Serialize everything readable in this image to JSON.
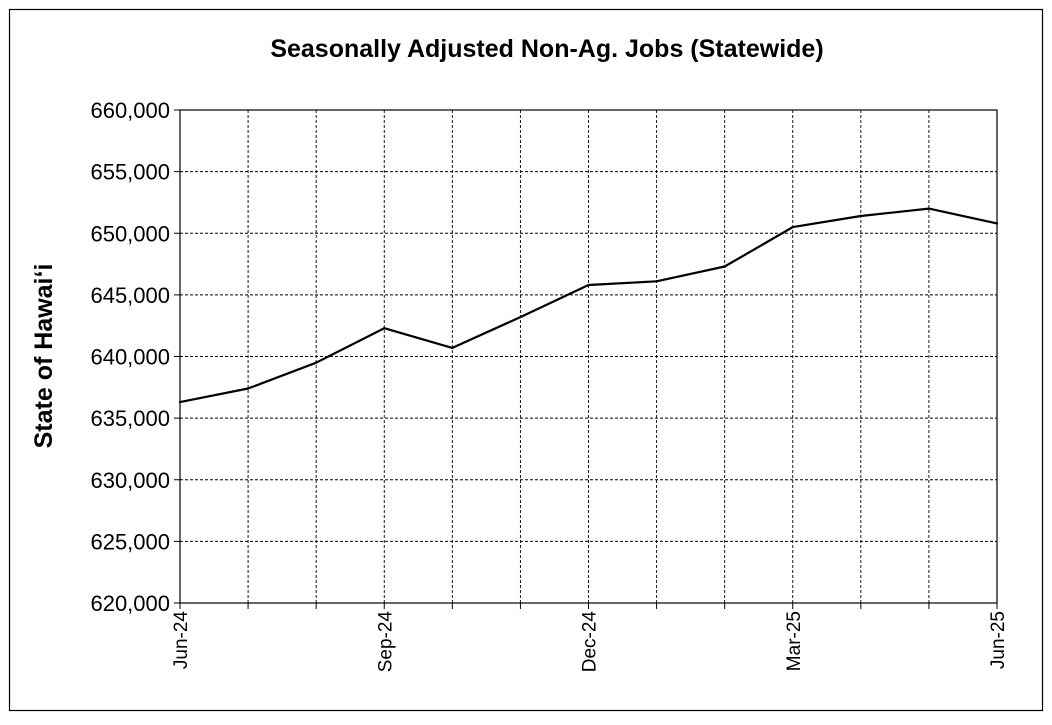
{
  "chart_data": {
    "type": "line",
    "title": "Seasonally Adjusted Non-Ag. Jobs (Statewide)",
    "ylabel": "State of Hawai‘i",
    "xlabel": "",
    "ylim": [
      620000,
      660000
    ],
    "y_ticks": [
      620000,
      625000,
      630000,
      635000,
      640000,
      645000,
      650000,
      655000,
      660000
    ],
    "y_tick_labels": [
      "620,000",
      "625,000",
      "630,000",
      "635,000",
      "640,000",
      "645,000",
      "650,000",
      "655,000",
      "660,000"
    ],
    "x": [
      "Jun-24",
      "Jul-24",
      "Aug-24",
      "Sep-24",
      "Oct-24",
      "Nov-24",
      "Dec-24",
      "Jan-25",
      "Feb-25",
      "Mar-25",
      "Apr-25",
      "May-25",
      "Jun-25"
    ],
    "x_tick_labels": [
      "Jun-24",
      "",
      "",
      "Sep-24",
      "",
      "",
      "Dec-24",
      "",
      "",
      "Mar-25",
      "",
      "",
      "Jun-25"
    ],
    "series": [
      {
        "values": [
          636300,
          637400,
          639500,
          642300,
          640700,
          643200,
          645800,
          646100,
          647300,
          650500,
          651400,
          652000,
          650800
        ],
        "color": "#000000"
      }
    ],
    "grid": true,
    "line_color": "#000000",
    "grid_color": "#000000"
  }
}
